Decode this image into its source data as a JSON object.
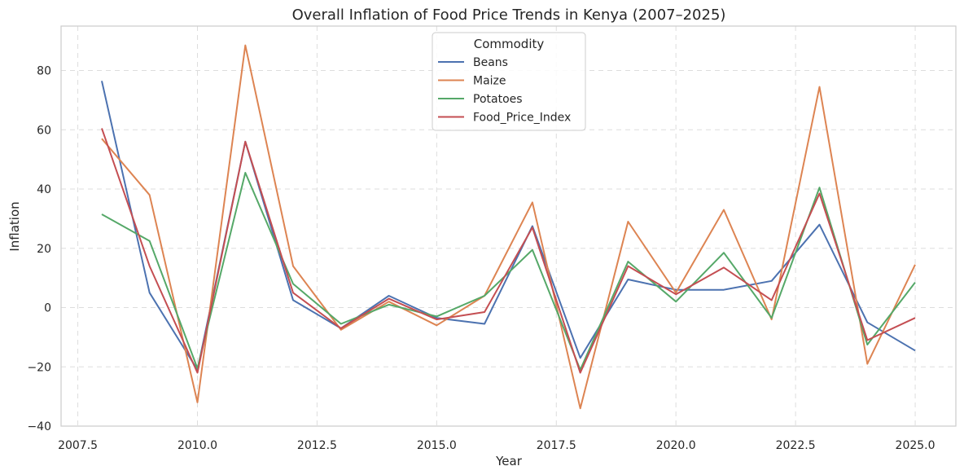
{
  "chart_data": {
    "type": "line",
    "title": "Overall Inflation of Food Price Trends in Kenya (2007–2025)",
    "xlabel": "Year",
    "ylabel": "Inflation",
    "xlim": [
      2007.15,
      2025.85
    ],
    "ylim": [
      -40,
      95
    ],
    "xticks": [
      2007.5,
      2010.0,
      2012.5,
      2015.0,
      2017.5,
      2020.0,
      2022.5,
      2025.0
    ],
    "xtick_labels": [
      "2007.5",
      "2010.0",
      "2012.5",
      "2015.0",
      "2017.5",
      "2020.0",
      "2022.5",
      "2025.0"
    ],
    "yticks": [
      -40,
      -20,
      0,
      20,
      40,
      60,
      80
    ],
    "ytick_labels": [
      "−40",
      "−20",
      "0",
      "20",
      "40",
      "60",
      "80"
    ],
    "grid": true,
    "legend": {
      "title": "Commodity",
      "position": "top-center"
    },
    "x": [
      2008,
      2009,
      2010,
      2011,
      2012,
      2013,
      2014,
      2015,
      2016,
      2017,
      2018,
      2019,
      2020,
      2021,
      2022,
      2023,
      2024,
      2025
    ],
    "series": [
      {
        "name": "Beans",
        "color": "#4c72b0",
        "values": [
          76.5,
          5,
          -21,
          56,
          2.5,
          -7,
          4,
          -3.5,
          -5.5,
          27.5,
          -17,
          9.5,
          6,
          6,
          9,
          28,
          -5,
          -14.5
        ]
      },
      {
        "name": "Maize",
        "color": "#dd8452",
        "values": [
          57,
          38,
          -32,
          88.5,
          14,
          -7.5,
          2,
          -6,
          4,
          35.5,
          -34,
          29,
          5,
          33,
          -4,
          74.5,
          -19,
          14.5
        ]
      },
      {
        "name": "Potatoes",
        "color": "#55a868",
        "values": [
          31.5,
          22.5,
          -20.5,
          45.5,
          8,
          -5.5,
          1,
          -3,
          4,
          19.5,
          -21,
          15.5,
          2,
          18.5,
          -3.5,
          40.5,
          -12.5,
          8.5
        ]
      },
      {
        "name": "Food_Price_Index",
        "color": "#c44e52",
        "values": [
          60.5,
          14,
          -22,
          56,
          5,
          -7,
          3,
          -4,
          -1.5,
          27,
          -22,
          14,
          4.5,
          13.5,
          2.5,
          38.5,
          -11,
          -3.5
        ]
      }
    ]
  }
}
